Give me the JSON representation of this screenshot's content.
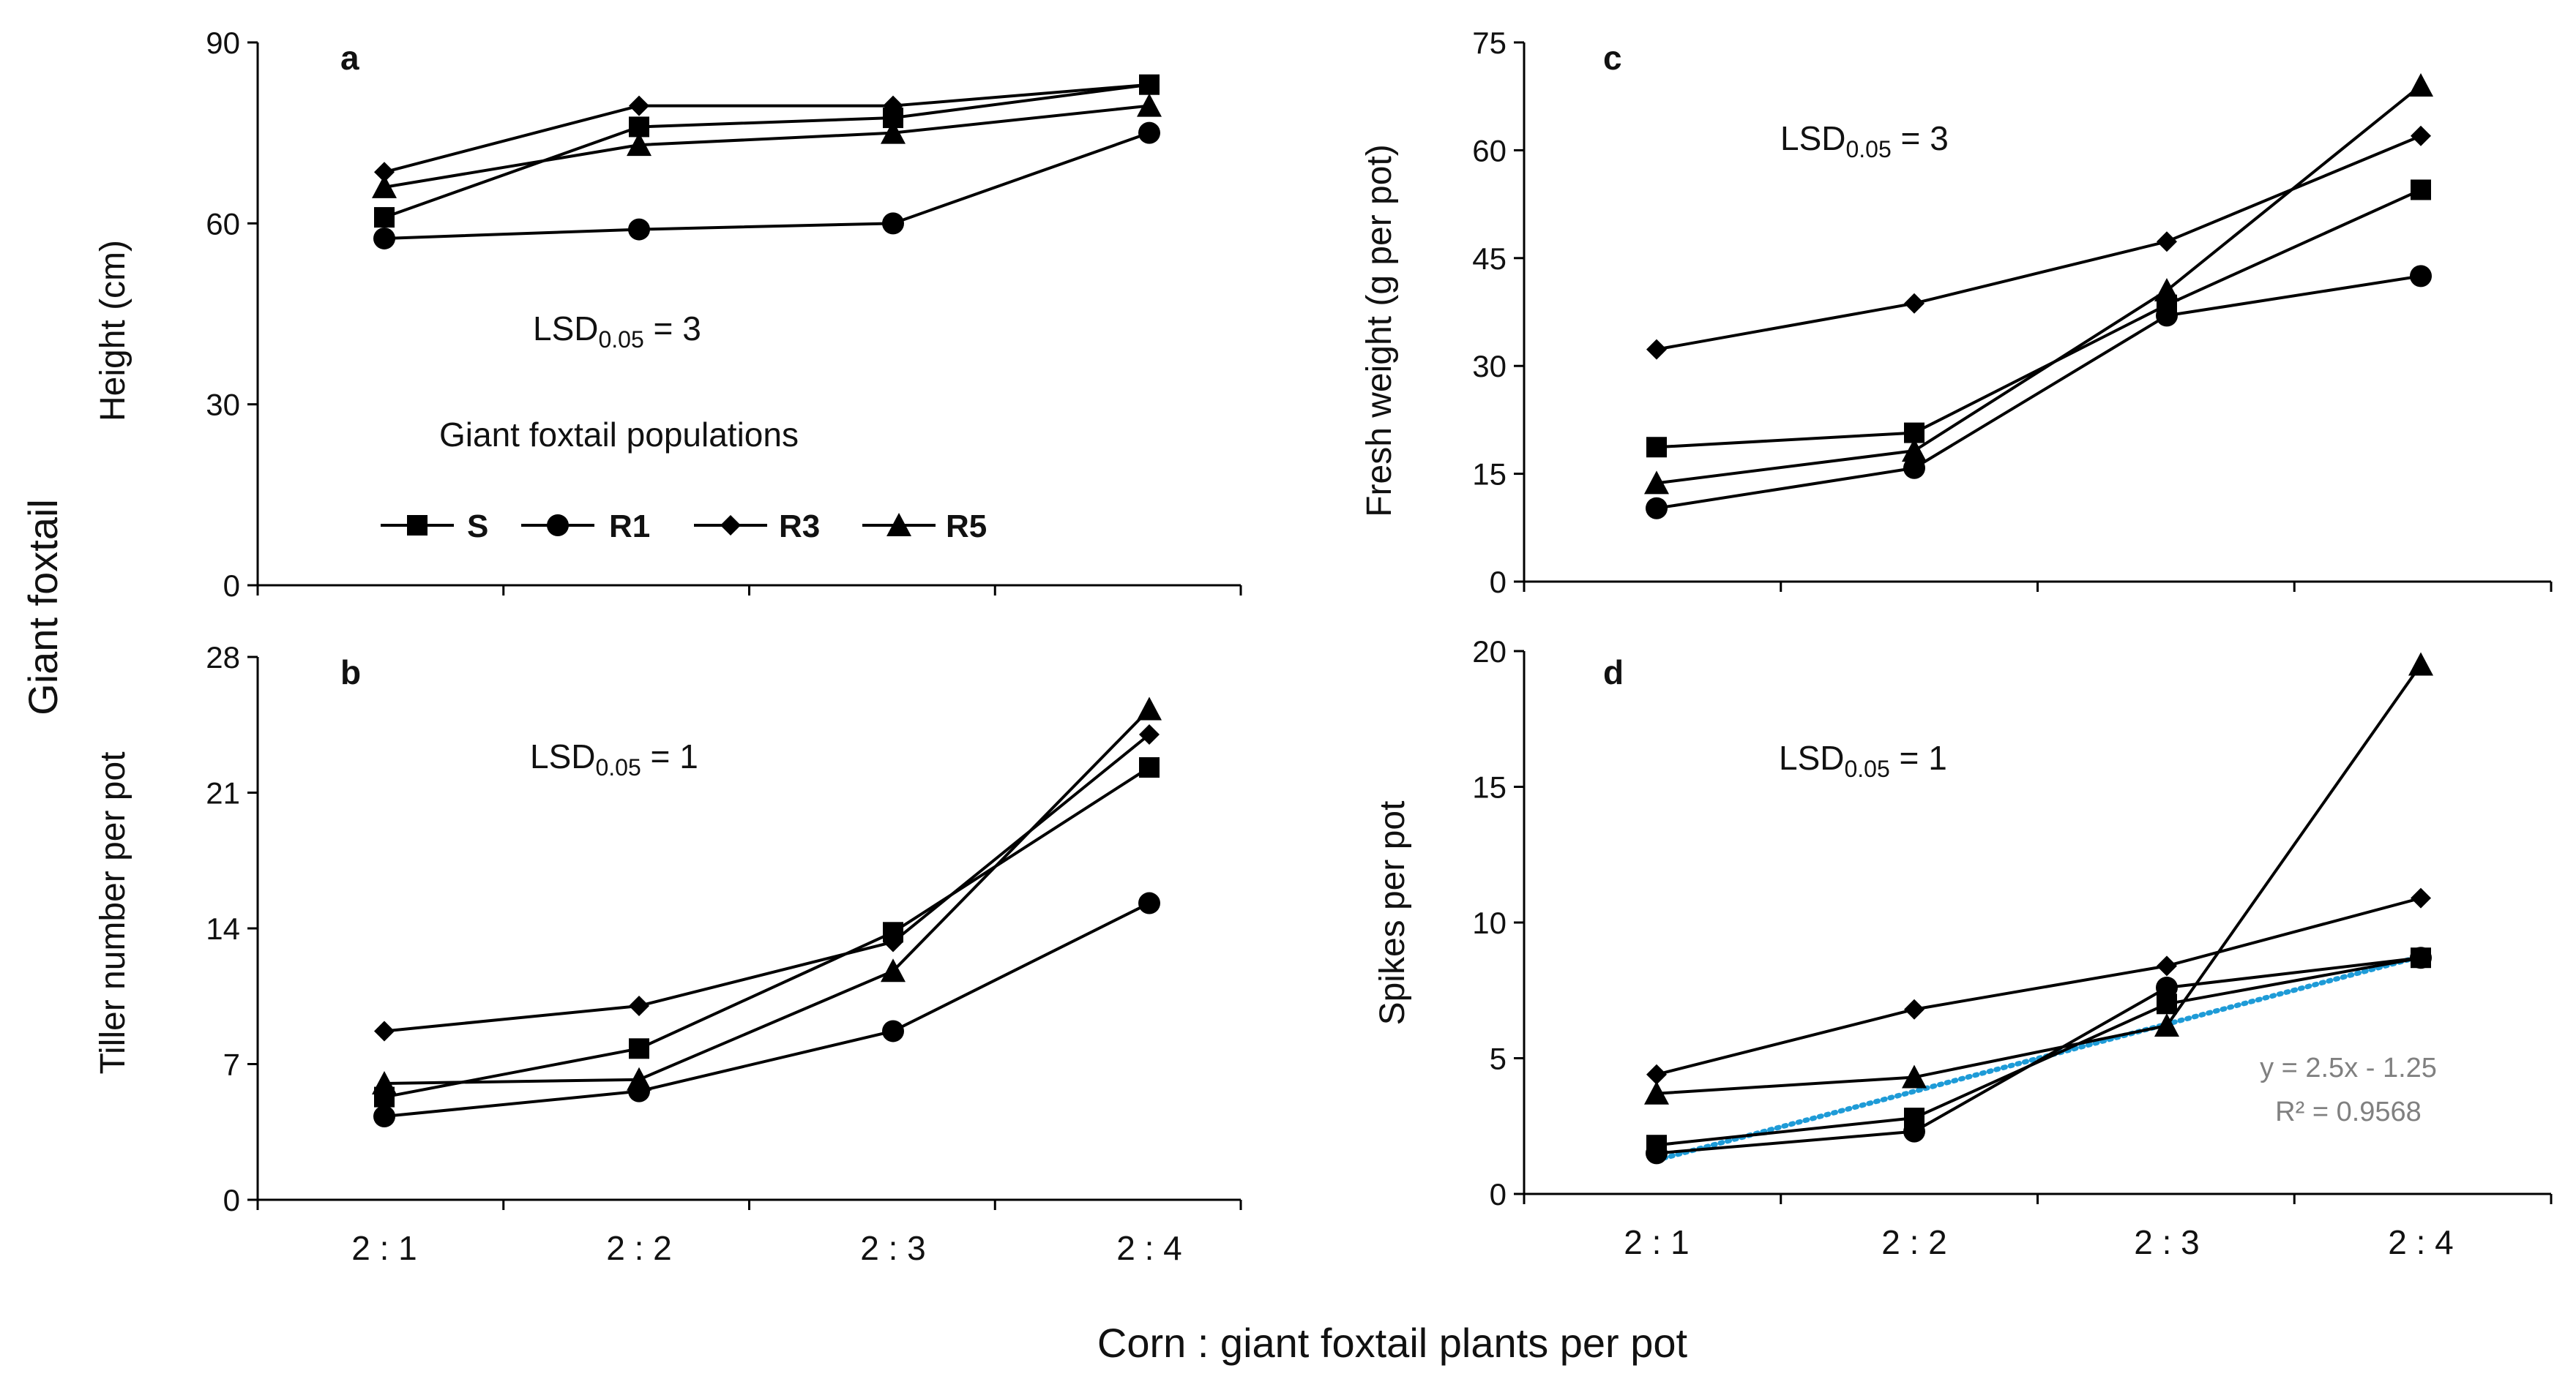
{
  "figure": {
    "y_group_label": "Giant foxtail",
    "x_label": "Corn : giant foxtail plants per pot",
    "categories": [
      "2 : 1",
      "2 : 2",
      "2 : 3",
      "2 : 4"
    ]
  },
  "legend": {
    "title": "Giant foxtail populations",
    "entries": [
      {
        "name": "S",
        "marker": "square"
      },
      {
        "name": "R1",
        "marker": "circle"
      },
      {
        "name": "R3",
        "marker": "diamond"
      },
      {
        "name": "R5",
        "marker": "triangle"
      }
    ]
  },
  "colors": {
    "series": "#000000",
    "trendline": "#1e9bd7",
    "trend_text": "#808080"
  },
  "chart_data": [
    {
      "id": "a",
      "panel_letter": "a",
      "type": "line",
      "ylabel": "Height (cm)",
      "ylim": [
        0,
        90
      ],
      "yticks": [
        0,
        30,
        60,
        90
      ],
      "lsd": {
        "prefix": "LSD",
        "sub": "0.05",
        "value": " = 3"
      },
      "categories": [
        "2 : 1",
        "2 : 2",
        "2 : 3",
        "2 : 4"
      ],
      "series": [
        {
          "name": "S",
          "values": [
            61,
            76,
            77.5,
            83
          ]
        },
        {
          "name": "R1",
          "values": [
            57.5,
            59,
            60,
            75
          ]
        },
        {
          "name": "R3",
          "values": [
            68.5,
            79.5,
            79.5,
            83
          ]
        },
        {
          "name": "R5",
          "values": [
            66,
            73,
            75,
            79.5
          ]
        }
      ]
    },
    {
      "id": "b",
      "panel_letter": "b",
      "type": "line",
      "ylabel": "Tiller number per pot",
      "ylim": [
        0,
        28
      ],
      "yticks": [
        0,
        7,
        14,
        21,
        28
      ],
      "lsd": {
        "prefix": "LSD",
        "sub": "0.05",
        "value": " = 1"
      },
      "categories": [
        "2 : 1",
        "2 : 2",
        "2 : 3",
        "2 : 4"
      ],
      "series": [
        {
          "name": "S",
          "values": [
            5.3,
            7.8,
            13.8,
            22.3
          ]
        },
        {
          "name": "R1",
          "values": [
            4.3,
            5.6,
            8.7,
            15.3
          ]
        },
        {
          "name": "R3",
          "values": [
            8.7,
            10,
            13.3,
            24
          ]
        },
        {
          "name": "R5",
          "values": [
            6,
            6.2,
            11.8,
            25.3
          ]
        }
      ]
    },
    {
      "id": "c",
      "panel_letter": "c",
      "type": "line",
      "ylabel": "Fresh weight (g per pot)",
      "ylim": [
        0,
        75
      ],
      "yticks": [
        0,
        15,
        30,
        45,
        60,
        75
      ],
      "lsd": {
        "prefix": "LSD",
        "sub": "0.05",
        "value": " = 3"
      },
      "categories": [
        "2 : 1",
        "2 : 2",
        "2 : 3",
        "2 : 4"
      ],
      "series": [
        {
          "name": "S",
          "values": [
            18.7,
            20.7,
            38.5,
            54.5
          ]
        },
        {
          "name": "R1",
          "values": [
            10.2,
            15.8,
            37,
            42.5
          ]
        },
        {
          "name": "R3",
          "values": [
            32.3,
            38.7,
            47.3,
            62
          ]
        },
        {
          "name": "R5",
          "values": [
            13.7,
            18.2,
            40.5,
            69
          ]
        }
      ]
    },
    {
      "id": "d",
      "panel_letter": "d",
      "type": "line",
      "ylabel": "Spikes per pot",
      "ylim": [
        0,
        20
      ],
      "yticks": [
        0,
        5,
        10,
        15,
        20
      ],
      "lsd": {
        "prefix": "LSD",
        "sub": "0.05",
        "value": " = 1"
      },
      "categories": [
        "2 : 1",
        "2 : 2",
        "2 : 3",
        "2 : 4"
      ],
      "series": [
        {
          "name": "S",
          "values": [
            1.8,
            2.8,
            7,
            8.7
          ]
        },
        {
          "name": "R1",
          "values": [
            1.5,
            2.3,
            7.6,
            8.7
          ]
        },
        {
          "name": "R3",
          "values": [
            4.4,
            6.8,
            8.4,
            10.9
          ]
        },
        {
          "name": "R5",
          "values": [
            3.7,
            4.3,
            6.2,
            19.5
          ]
        }
      ],
      "trendline": {
        "type": "linear",
        "style": "dotted",
        "slope": 2.5,
        "intercept": -1.25,
        "equation": "y = 2.5x - 1.25",
        "r_squared": "R² = 0.9568"
      }
    }
  ]
}
